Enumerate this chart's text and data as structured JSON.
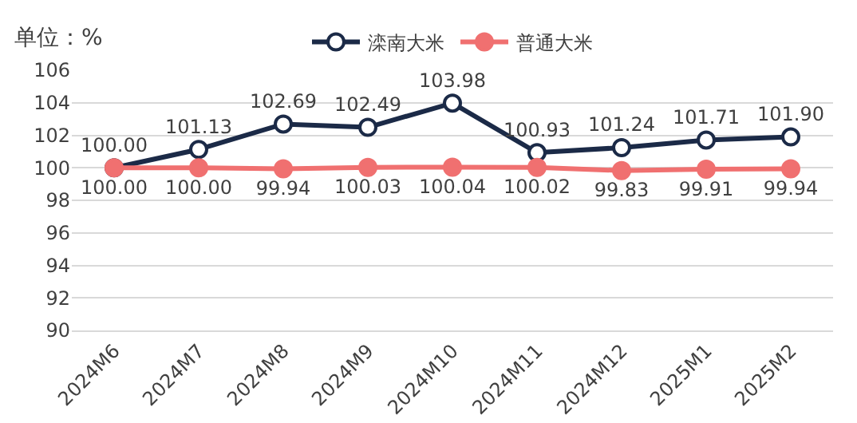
{
  "chart_data": {
    "type": "line",
    "ylabel": "单位：%",
    "categories": [
      "2024M6",
      "2024M7",
      "2024M8",
      "2024M9",
      "2024M10",
      "2024M11",
      "2024M12",
      "2025M1",
      "2025M2"
    ],
    "series": [
      {
        "name": "滦南大米",
        "color": "#1b2a47",
        "values": [
          100.0,
          101.13,
          102.69,
          102.49,
          103.98,
          100.93,
          101.24,
          101.71,
          101.9
        ],
        "value_labels": [
          "100.00",
          "101.13",
          "102.69",
          "102.49",
          "103.98",
          "100.93",
          "101.24",
          "101.71",
          "101.90"
        ]
      },
      {
        "name": "普通大米",
        "color": "#f07070",
        "values": [
          100.0,
          100.0,
          99.94,
          100.03,
          100.04,
          100.02,
          99.83,
          99.91,
          99.94
        ],
        "value_labels": [
          "100.00",
          "100.00",
          "99.94",
          "100.03",
          "100.04",
          "100.02",
          "99.83",
          "99.91",
          "99.94"
        ]
      }
    ],
    "ylim": [
      90,
      106
    ],
    "yticks": [
      90,
      92,
      94,
      96,
      98,
      100,
      102,
      104,
      106
    ],
    "grid": "y",
    "legend": "top",
    "marker": "circle",
    "line_style": "solid"
  }
}
